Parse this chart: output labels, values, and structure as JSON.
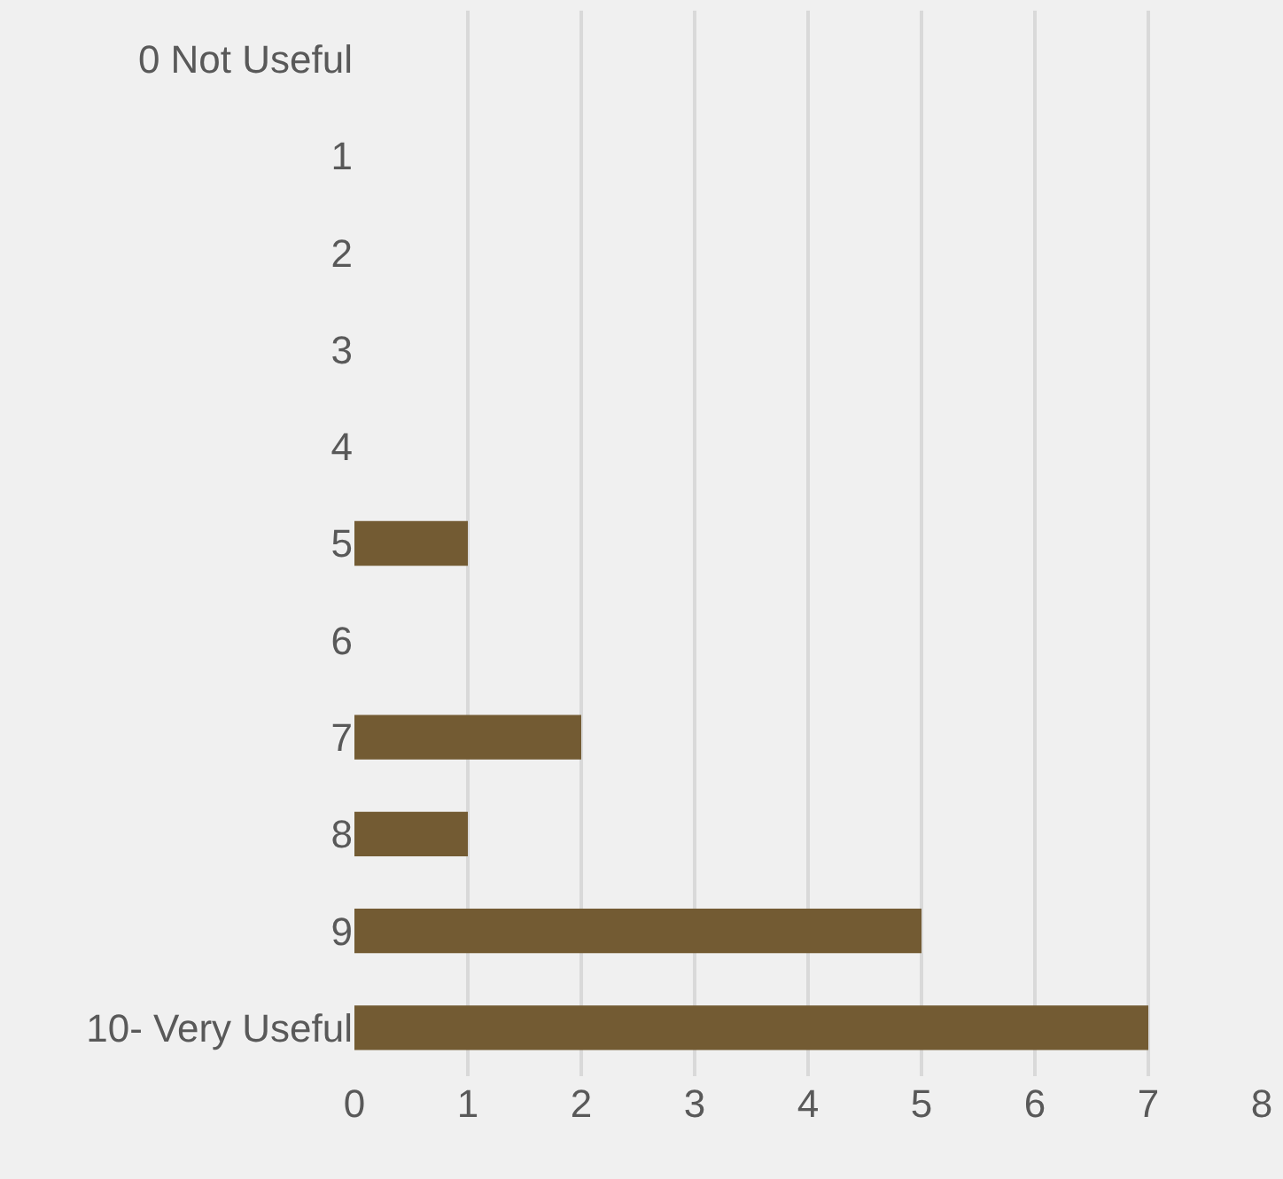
{
  "chart_data": {
    "type": "bar",
    "orientation": "horizontal",
    "categories": [
      "0 Not Useful",
      "1",
      "2",
      "3",
      "4",
      "5",
      "6",
      "7",
      "8",
      "9",
      "10- Very Useful"
    ],
    "values": [
      0,
      0,
      0,
      0,
      0,
      1,
      0,
      2,
      1,
      5,
      7
    ],
    "color": "#735b33",
    "xlim": [
      0,
      8
    ],
    "xticks": [
      0,
      1,
      2,
      3,
      4,
      5,
      6,
      7,
      8
    ],
    "grid": "x",
    "legend": false
  }
}
